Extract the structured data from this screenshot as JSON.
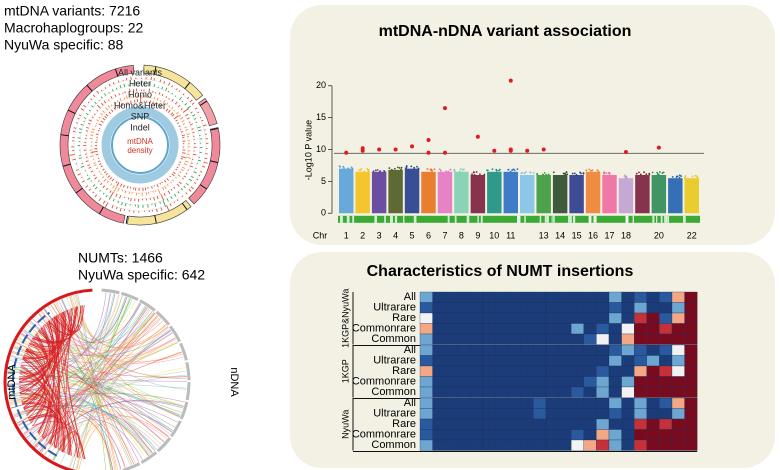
{
  "circos": {
    "stats": [
      "mtDNA variants: 7216",
      "Macrohaplogroups: 22",
      "NyuWa specific: 88"
    ],
    "tracks": [
      "All variants",
      "Heter",
      "Homo",
      "Homo&Heter",
      "SNP",
      "Indel"
    ],
    "center": [
      "mtDNA",
      "density"
    ]
  },
  "chart_data": {
    "type": "manhattan",
    "title": "mtDNA-nDNA variant association",
    "ylabel": "-Log10 P value",
    "xlabel": "Chr",
    "categories": [
      "1",
      "2",
      "3",
      "4",
      "5",
      "6",
      "7",
      "8",
      "9",
      "10",
      "11",
      null,
      "13",
      "14",
      "15",
      "16",
      "17",
      "18",
      null,
      "20",
      null,
      "22"
    ],
    "colors": [
      "#5aa0d8",
      "#f3c01b",
      "#5b3d99",
      "#4e5a1f",
      "#243c8c",
      "#e8701c",
      "#e377c2",
      "#7fcfb0",
      "#7b1e3c",
      "#1a8f7f",
      "#2a6fc4",
      "#82c2e8",
      "#3a9a3a",
      "#2a4a2a",
      "#2b3a8c",
      "#f08030",
      "#ef6aa0",
      "#c0a0d0",
      "#7b1e3c",
      "#2e8b57",
      "#2060b0",
      "#e8c81b"
    ],
    "values": [
      7,
      6.5,
      6.5,
      6.8,
      7,
      6.5,
      6.5,
      6.5,
      6,
      6.5,
      6.5,
      6,
      6,
      6,
      6,
      6.5,
      6,
      5.5,
      6,
      6,
      5.5,
      5.5
    ],
    "points": {
      "color": "#e31a1c",
      "x": [
        1,
        2,
        2,
        3,
        4,
        5,
        6,
        6,
        7,
        7,
        9,
        10,
        11,
        11,
        11,
        12,
        13,
        18,
        20
      ],
      "values": [
        9.5,
        10.2,
        9.8,
        10,
        10,
        10.5,
        11.5,
        9.5,
        16.5,
        9.5,
        12,
        9.8,
        20.8,
        10,
        9.8,
        9.8,
        10,
        9.6,
        10.3
      ]
    },
    "threshold": 9.4,
    "ylim": [
      -2,
      22
    ],
    "yticks": [
      0,
      5,
      10,
      15,
      20
    ]
  },
  "chord": {
    "stats": [
      "NUMTs: 1466",
      "NyuWa specific: 642"
    ],
    "left": "mtDNA",
    "right": "nDNA"
  },
  "heatmap": {
    "title": "Characteristics of NUMT insertions",
    "colorlim": [
      -3,
      3
    ],
    "groups": [
      {
        "name": "1KGP&NyuWa",
        "rows": [
          "All",
          "Ultrarare",
          "Rare",
          "Commonrare",
          "Common"
        ],
        "values": [
          [
            -1,
            -3,
            -3,
            -3,
            -3,
            -3,
            -3,
            -3,
            -3,
            -3,
            -3,
            -3,
            -3,
            -3,
            -3,
            -1,
            -3,
            -2,
            -3,
            -2,
            1,
            3
          ],
          [
            -2,
            -3,
            -3,
            -3,
            -3,
            -3,
            -3,
            -3,
            -3,
            -3,
            -3,
            -3,
            -3,
            -3,
            -3,
            -2,
            -3,
            -1,
            -3,
            -3,
            -1,
            3
          ],
          [
            0,
            -3,
            -3,
            -3,
            -3,
            -3,
            -3,
            -3,
            -3,
            -3,
            -3,
            -3,
            -3,
            -3,
            -3,
            -1,
            -3,
            2,
            3,
            -2,
            1,
            3
          ],
          [
            1,
            -3,
            -3,
            -3,
            -3,
            -3,
            -3,
            -3,
            -3,
            -3,
            -3,
            -3,
            -1,
            -3,
            -2,
            -3,
            0,
            3,
            3,
            2,
            3,
            3
          ],
          [
            -1,
            -3,
            -3,
            -3,
            -3,
            -3,
            -3,
            -3,
            -3,
            -3,
            -3,
            -3,
            -3,
            -2,
            0,
            -3,
            1,
            3,
            3,
            3,
            3,
            3
          ]
        ]
      },
      {
        "name": "1KGP",
        "rows": [
          "All",
          "Ultrarare",
          "Rare",
          "Commonrare",
          "Common"
        ],
        "values": [
          [
            -1,
            -3,
            -3,
            -3,
            -3,
            -3,
            -3,
            -3,
            -3,
            -3,
            -3,
            -3,
            -3,
            -3,
            -3,
            -2,
            -1,
            -2,
            -3,
            -2,
            0,
            3
          ],
          [
            -2,
            -3,
            -3,
            -3,
            -3,
            -3,
            -3,
            -3,
            -3,
            -3,
            -3,
            -3,
            -3,
            -3,
            -3,
            -1,
            -3,
            -2,
            -1,
            -3,
            -1,
            3
          ],
          [
            1,
            -3,
            -3,
            -3,
            -3,
            -3,
            -3,
            -3,
            -3,
            -3,
            -3,
            -3,
            -3,
            -3,
            -2,
            -3,
            -3,
            1,
            3,
            2,
            0,
            3
          ],
          [
            -1,
            -3,
            -3,
            -3,
            -3,
            -3,
            -3,
            -3,
            -3,
            -3,
            -3,
            -3,
            -3,
            -2,
            -1,
            -3,
            -1,
            3,
            3,
            3,
            3,
            3
          ],
          [
            -1,
            -3,
            -3,
            -3,
            -3,
            -3,
            -3,
            -3,
            -3,
            -3,
            -3,
            -3,
            -2,
            -3,
            -1,
            -3,
            0,
            3,
            3,
            3,
            3,
            3
          ]
        ]
      },
      {
        "name": "NyuWa",
        "rows": [
          "All",
          "Ultrarare",
          "Rare",
          "Commonrare",
          "Common"
        ],
        "values": [
          [
            -1,
            -3,
            -3,
            -3,
            -3,
            -3,
            -3,
            -3,
            -3,
            -2,
            -3,
            -3,
            -3,
            -3,
            -3,
            -1,
            -3,
            -1,
            -3,
            -2,
            1,
            3
          ],
          [
            -1,
            -3,
            -3,
            -3,
            -3,
            -3,
            -3,
            -3,
            -3,
            -2,
            -3,
            -3,
            -3,
            -3,
            -3,
            -2,
            -3,
            -1,
            -3,
            -3,
            -1,
            3
          ],
          [
            -2,
            -3,
            -3,
            -3,
            -3,
            -3,
            -3,
            -3,
            -3,
            -3,
            -3,
            -3,
            -3,
            -3,
            -1,
            -3,
            -3,
            2,
            3,
            2,
            3,
            3
          ],
          [
            -2,
            -3,
            -3,
            -3,
            -3,
            -3,
            -3,
            -3,
            -3,
            -3,
            -3,
            -3,
            -2,
            -3,
            1,
            -1,
            -3,
            3,
            3,
            3,
            3,
            3
          ],
          [
            -1,
            -3,
            -3,
            -3,
            -3,
            -3,
            -3,
            -3,
            -3,
            -3,
            -3,
            -3,
            0,
            1,
            2,
            -1,
            -3,
            2,
            3,
            3,
            3,
            3
          ]
        ]
      }
    ]
  }
}
